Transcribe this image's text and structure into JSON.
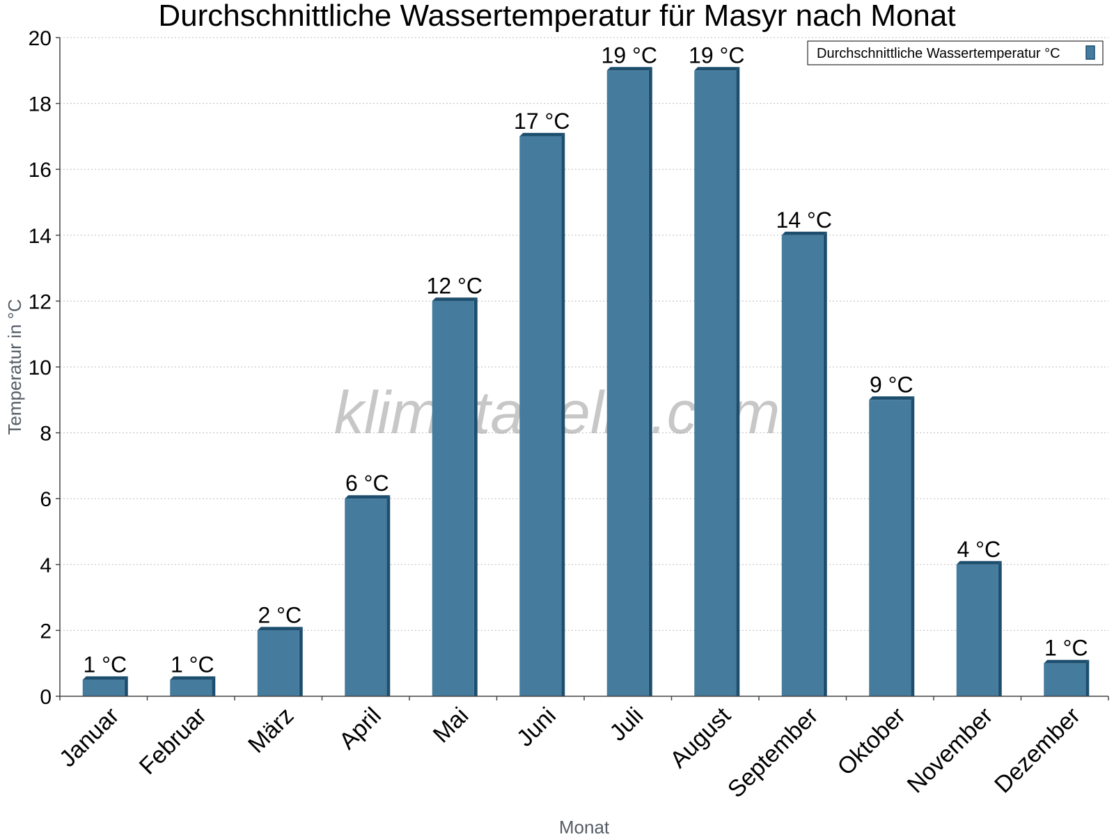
{
  "colors": {
    "bar_front": "#457b9d",
    "bar_side": "#1d4e6e",
    "grid": "#bbbbbb",
    "axis": "#444444"
  },
  "watermark": "klimatabelle.com",
  "chart_data": {
    "type": "bar",
    "title": "Durchschnittliche Wassertemperatur für Masyr nach Monat",
    "xlabel": "Monat",
    "ylabel": "Temperatur in °C",
    "ylim": [
      0,
      20
    ],
    "yticks": [
      0,
      2,
      4,
      6,
      8,
      10,
      12,
      14,
      16,
      18,
      20
    ],
    "grid": true,
    "legend_position": "top-right",
    "categories": [
      "Januar",
      "Februar",
      "März",
      "April",
      "Mai",
      "Juni",
      "Juli",
      "August",
      "September",
      "Oktober",
      "November",
      "Dezember"
    ],
    "series": [
      {
        "name": "Durchschnittliche Wassertemperatur °C",
        "values": [
          0.5,
          0.5,
          2,
          6,
          12,
          17,
          19,
          19,
          14,
          9,
          4,
          1
        ],
        "labels": [
          "1 °C",
          "1 °C",
          "2 °C",
          "6 °C",
          "12 °C",
          "17 °C",
          "19 °C",
          "19 °C",
          "14 °C",
          "9 °C",
          "4 °C",
          "1 °C"
        ]
      }
    ]
  }
}
